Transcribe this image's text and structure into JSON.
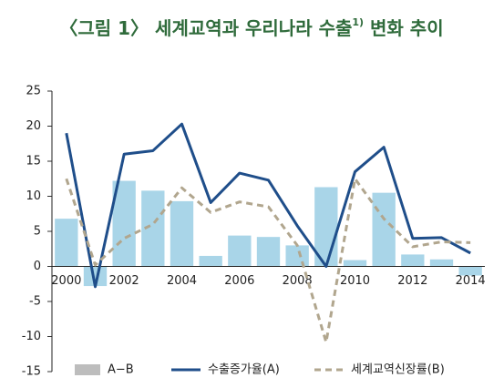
{
  "chart_data": {
    "type": "bar_line",
    "title": "〈그림 1〉 세계교역과 우리나라 수출",
    "title_superscript": "1)",
    "title_suffix": " 변화 추이",
    "categories": [
      "2000",
      null,
      "2002",
      null,
      "2004",
      null,
      "2006",
      null,
      "2008",
      null,
      "2010",
      null,
      "2012",
      null,
      "2014"
    ],
    "series": [
      {
        "name": "A−B",
        "kind": "bar",
        "color": "#a9d5e8",
        "legend_color": "#bdbdbd",
        "values": [
          6.8,
          -2.8,
          12.2,
          10.8,
          9.3,
          1.5,
          4.4,
          4.2,
          3.0,
          11.3,
          0.9,
          10.5,
          1.7,
          1.0,
          -1.3
        ]
      },
      {
        "name": "수출증가율(A)",
        "kind": "line",
        "color": "#1f4e8a",
        "dashed": false,
        "values": [
          19.0,
          -2.9,
          16.0,
          16.5,
          20.3,
          9.1,
          13.3,
          12.3,
          5.8,
          0.0,
          13.5,
          17.0,
          4.0,
          4.1,
          1.9
        ]
      },
      {
        "name": "세계교역신장률(B)",
        "kind": "line",
        "color": "#b1a68e",
        "dashed": true,
        "values": [
          12.5,
          0.2,
          4.0,
          6.0,
          11.2,
          7.7,
          9.2,
          8.5,
          3.0,
          -10.8,
          12.5,
          6.8,
          2.8,
          3.5,
          3.4
        ]
      }
    ],
    "ylim": [
      -15,
      25
    ],
    "yticks": [
      -15,
      -10,
      -5,
      0,
      5,
      10,
      15,
      20,
      25
    ]
  }
}
